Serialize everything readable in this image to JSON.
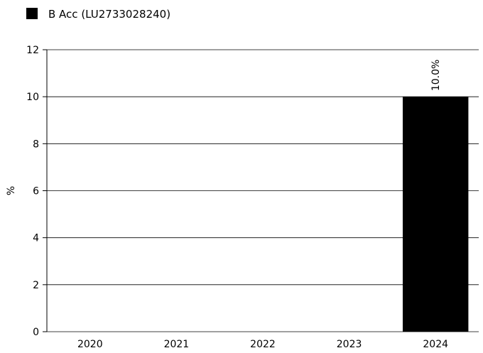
{
  "chart_data": {
    "type": "bar",
    "categories": [
      "2020",
      "2021",
      "2022",
      "2023",
      "2024"
    ],
    "series": [
      {
        "name": "B Acc (LU2733028240)",
        "values": [
          null,
          null,
          null,
          null,
          10.0
        ],
        "data_labels": [
          "",
          "",
          "",
          "",
          "10.0%"
        ],
        "color": "#000000"
      }
    ],
    "ylabel": "%",
    "ylim": [
      0,
      12
    ],
    "yticks": [
      0,
      2,
      4,
      6,
      8,
      10,
      12
    ],
    "grid": true,
    "legend_position": "top-left"
  }
}
